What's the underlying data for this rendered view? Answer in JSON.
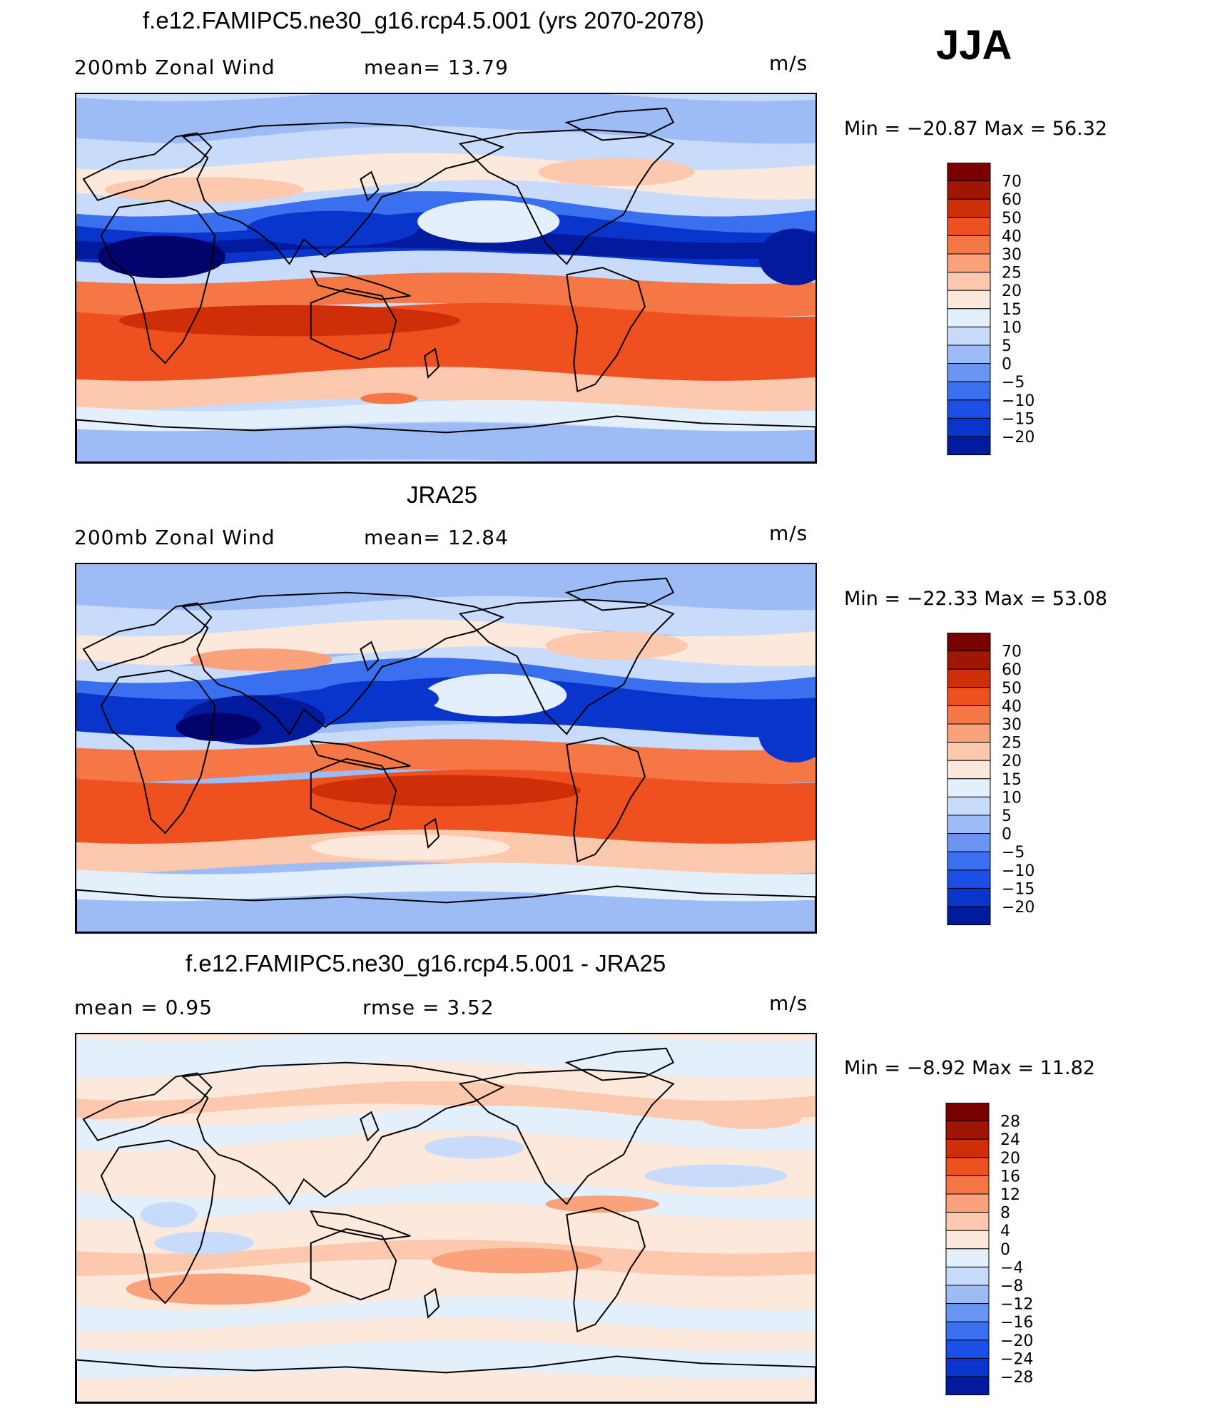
{
  "season": "JJA",
  "colors": {
    "scale": [
      "#02036b",
      "#021a9e",
      "#0a35cc",
      "#1c4ee8",
      "#3a6ff0",
      "#6a95f2",
      "#9dbcf6",
      "#c8dbfa",
      "#e4effc",
      "#fde9db",
      "#fcc9ae",
      "#f9a27c",
      "#f57746",
      "#ee5020",
      "#cf2f08",
      "#a01504",
      "#7a0000"
    ]
  },
  "panels": [
    {
      "id": "model",
      "title": "f.e12.FAMIPC5.ne30_g16.rcp4.5.001 (yrs 2070-2078)",
      "left_label": "200mb  Zonal  Wind",
      "mid_label": "mean=   13.79",
      "units": "m/s",
      "min_max": "Min  =  −20.87  Max  =    56.32",
      "levels": [
        "70",
        "60",
        "50",
        "40",
        "30",
        "25",
        "20",
        "15",
        "10",
        "5",
        "0",
        "−5",
        "−10",
        "−15",
        "−20"
      ]
    },
    {
      "id": "obs",
      "title": "JRA25",
      "left_label": "200mb  Zonal  Wind",
      "mid_label": "mean=   12.84",
      "units": "m/s",
      "min_max": "Min  =  −22.33  Max  =    53.08",
      "levels": [
        "70",
        "60",
        "50",
        "40",
        "30",
        "25",
        "20",
        "15",
        "10",
        "5",
        "0",
        "−5",
        "−10",
        "−15",
        "−20"
      ]
    },
    {
      "id": "diff",
      "title": "f.e12.FAMIPC5.ne30_g16.rcp4.5.001 - JRA25",
      "left_label": "mean  =      0.95",
      "mid_label": "rmse  =      3.52",
      "units": "m/s",
      "min_max": "Min  =    −8.92  Max  =    11.82",
      "levels": [
        "28",
        "24",
        "20",
        "16",
        "12",
        "8",
        "4",
        "0",
        "−4",
        "−8",
        "−12",
        "−16",
        "−20",
        "−24",
        "−28"
      ]
    }
  ]
}
